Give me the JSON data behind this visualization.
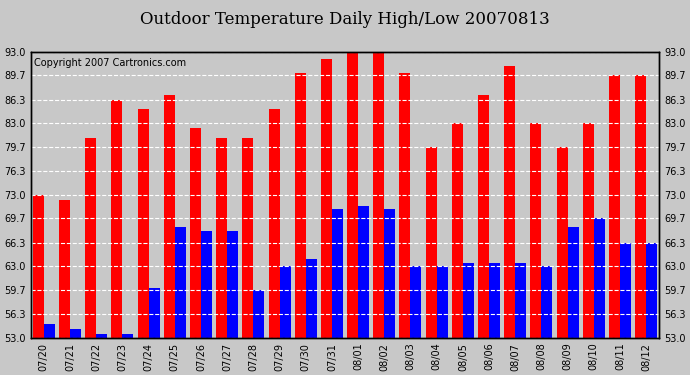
{
  "title": "Outdoor Temperature Daily High/Low 20070813",
  "copyright": "Copyright 2007 Cartronics.com",
  "dates": [
    "07/20",
    "07/21",
    "07/22",
    "07/23",
    "07/24",
    "07/25",
    "07/26",
    "07/27",
    "07/28",
    "07/29",
    "07/30",
    "07/31",
    "08/01",
    "08/02",
    "08/03",
    "08/04",
    "08/05",
    "08/06",
    "08/07",
    "08/08",
    "08/09",
    "08/10",
    "08/11",
    "08/12"
  ],
  "highs": [
    73.0,
    72.3,
    81.0,
    86.3,
    85.0,
    87.0,
    82.3,
    81.0,
    81.0,
    85.0,
    90.0,
    92.0,
    93.0,
    93.0,
    90.0,
    79.7,
    83.0,
    87.0,
    91.0,
    83.0,
    79.7,
    83.0,
    89.7,
    89.7
  ],
  "lows": [
    55.0,
    54.3,
    53.5,
    53.5,
    60.0,
    68.5,
    68.0,
    68.0,
    59.7,
    63.0,
    64.0,
    71.0,
    71.5,
    71.0,
    63.0,
    63.0,
    63.5,
    63.5,
    63.5,
    63.0,
    68.5,
    69.7,
    66.3,
    66.3
  ],
  "ylim_min": 53.0,
  "ylim_max": 93.0,
  "yticks": [
    53.0,
    56.3,
    59.7,
    63.0,
    66.3,
    69.7,
    73.0,
    76.3,
    79.7,
    83.0,
    86.3,
    89.7,
    93.0
  ],
  "high_color": "#ff0000",
  "low_color": "#0000ff",
  "fig_bg_color": "#c8c8c8",
  "plot_bg_color": "#c8c8c8",
  "grid_color": "#ffffff",
  "title_fontsize": 12,
  "copyright_fontsize": 7,
  "tick_fontsize": 7,
  "bar_width": 0.42,
  "bar_gap": 0.0
}
